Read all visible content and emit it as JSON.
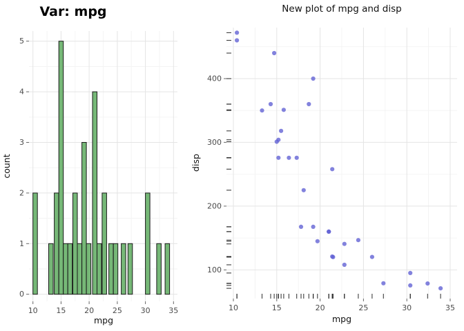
{
  "page": {
    "background": "#ffffff"
  },
  "chart_data": [
    {
      "type": "bar",
      "title": "Var: mpg",
      "xlabel": "mpg",
      "ylabel": "count",
      "x_ticks": [
        10,
        15,
        20,
        25,
        30,
        35
      ],
      "y_ticks": [
        0,
        1,
        2,
        3,
        4,
        5
      ],
      "xlim": [
        9.3,
        35.7
      ],
      "ylim": [
        -0.14,
        5.2
      ],
      "bar_width": 0.8,
      "bar_fill": "#76b877",
      "bar_stroke": "#1a1a1a",
      "grid": true,
      "legend": "none",
      "bars": [
        {
          "x": 10.4,
          "count": 2
        },
        {
          "x": 13.2,
          "count": 1
        },
        {
          "x": 14.2,
          "count": 2
        },
        {
          "x": 15.0,
          "count": 5
        },
        {
          "x": 15.8,
          "count": 1
        },
        {
          "x": 16.6,
          "count": 1
        },
        {
          "x": 17.5,
          "count": 2
        },
        {
          "x": 18.3,
          "count": 1
        },
        {
          "x": 19.1,
          "count": 3
        },
        {
          "x": 19.9,
          "count": 1
        },
        {
          "x": 21.0,
          "count": 4
        },
        {
          "x": 21.8,
          "count": 1
        },
        {
          "x": 22.7,
          "count": 2
        },
        {
          "x": 23.9,
          "count": 1
        },
        {
          "x": 24.7,
          "count": 1
        },
        {
          "x": 26.1,
          "count": 1
        },
        {
          "x": 27.3,
          "count": 1
        },
        {
          "x": 30.4,
          "count": 2
        },
        {
          "x": 32.4,
          "count": 1
        },
        {
          "x": 33.9,
          "count": 1
        }
      ]
    },
    {
      "type": "scatter",
      "title": "New plot of mpg and disp",
      "xlabel": "mpg",
      "ylabel": "disp",
      "x_ticks": [
        10,
        15,
        20,
        25,
        30,
        35
      ],
      "y_ticks": [
        100,
        200,
        300,
        400
      ],
      "xlim": [
        9.2,
        35.8
      ],
      "ylim": [
        55,
        480
      ],
      "point_color": "#5f5fd3",
      "rug": true,
      "grid": true,
      "legend": "none",
      "points": [
        {
          "mpg": 21.0,
          "disp": 160.0
        },
        {
          "mpg": 21.0,
          "disp": 160.0
        },
        {
          "mpg": 22.8,
          "disp": 108.0
        },
        {
          "mpg": 21.4,
          "disp": 258.0
        },
        {
          "mpg": 18.7,
          "disp": 360.0
        },
        {
          "mpg": 18.1,
          "disp": 225.0
        },
        {
          "mpg": 14.3,
          "disp": 360.0
        },
        {
          "mpg": 24.4,
          "disp": 146.7
        },
        {
          "mpg": 22.8,
          "disp": 140.8
        },
        {
          "mpg": 19.2,
          "disp": 167.6
        },
        {
          "mpg": 17.8,
          "disp": 167.6
        },
        {
          "mpg": 16.4,
          "disp": 275.8
        },
        {
          "mpg": 17.3,
          "disp": 275.8
        },
        {
          "mpg": 15.2,
          "disp": 275.8
        },
        {
          "mpg": 10.4,
          "disp": 472.0
        },
        {
          "mpg": 10.4,
          "disp": 460.0
        },
        {
          "mpg": 14.7,
          "disp": 440.0
        },
        {
          "mpg": 32.4,
          "disp": 78.7
        },
        {
          "mpg": 30.4,
          "disp": 75.7
        },
        {
          "mpg": 33.9,
          "disp": 71.1
        },
        {
          "mpg": 21.5,
          "disp": 120.1
        },
        {
          "mpg": 15.5,
          "disp": 318.0
        },
        {
          "mpg": 15.2,
          "disp": 304.0
        },
        {
          "mpg": 13.3,
          "disp": 350.0
        },
        {
          "mpg": 19.2,
          "disp": 400.0
        },
        {
          "mpg": 27.3,
          "disp": 79.0
        },
        {
          "mpg": 26.0,
          "disp": 120.3
        },
        {
          "mpg": 30.4,
          "disp": 95.1
        },
        {
          "mpg": 15.8,
          "disp": 351.0
        },
        {
          "mpg": 19.7,
          "disp": 145.0
        },
        {
          "mpg": 15.0,
          "disp": 301.0
        },
        {
          "mpg": 21.4,
          "disp": 121.0
        }
      ]
    }
  ]
}
